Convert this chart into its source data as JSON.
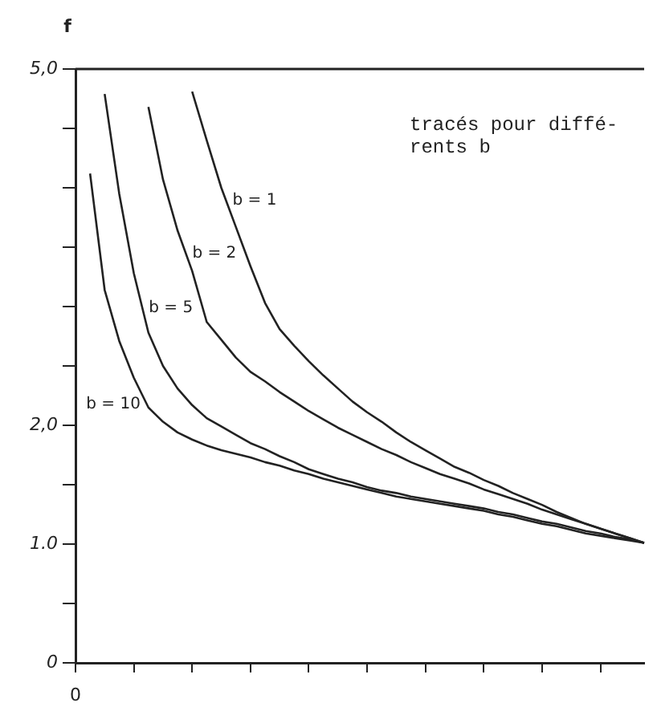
{
  "chart_data": {
    "type": "line",
    "ylabel": "f",
    "annotations": [
      "tracés pour diffé-\nrents b"
    ],
    "categories": [
      "0",
      null,
      null,
      null,
      null,
      null,
      null,
      null,
      null,
      null,
      null,
      null,
      null,
      null,
      null,
      null,
      null,
      null,
      null,
      null,
      null,
      null,
      null,
      null,
      null,
      null,
      null,
      null,
      null,
      null,
      null,
      null,
      null,
      null,
      null,
      null,
      null,
      null,
      null,
      null
    ],
    "ylim": [
      0,
      5
    ],
    "yticks": [
      0,
      {
        "value": 0.5,
        "label": null
      },
      {
        "value": 1,
        "label": "1.0"
      },
      {
        "value": 1.5,
        "label": null
      },
      {
        "value": 2,
        "label": "2,0"
      },
      {
        "value": 2.5,
        "label": null
      },
      {
        "value": 3,
        "label": null
      },
      {
        "value": 3.5,
        "label": null
      },
      {
        "value": 4,
        "label": null
      },
      {
        "value": 4.5,
        "label": null
      },
      {
        "value": 5,
        "label": "5,0"
      }
    ],
    "grid": false,
    "legend": false,
    "marker": "none",
    "line_style": "solid",
    "series": [
      {
        "name": "b = 1",
        "color": "#222222",
        "values": [
          null,
          null,
          null,
          null,
          null,
          null,
          null,
          null,
          4.81,
          4.4,
          4.0,
          3.67,
          3.34,
          3.03,
          2.81,
          2.67,
          2.54,
          2.42,
          2.31,
          2.2,
          2.11,
          2.03,
          1.94,
          1.86,
          1.79,
          1.72,
          1.65,
          1.6,
          1.54,
          1.49,
          1.43,
          1.38,
          1.33,
          1.27,
          1.22,
          1.17,
          1.13,
          1.09,
          1.05,
          1.01
        ]
      },
      {
        "name": "b = 2",
        "color": "#222222",
        "values": [
          null,
          null,
          null,
          null,
          null,
          4.68,
          4.07,
          3.64,
          3.3,
          2.87,
          2.72,
          2.57,
          2.45,
          2.37,
          2.28,
          2.2,
          2.12,
          2.05,
          1.98,
          1.92,
          1.86,
          1.8,
          1.75,
          1.69,
          1.64,
          1.59,
          1.55,
          1.51,
          1.46,
          1.42,
          1.38,
          1.34,
          1.29,
          1.25,
          1.21,
          1.17,
          1.13,
          1.09,
          1.05,
          1.01
        ]
      },
      {
        "name": "b = 5",
        "color": "#222222",
        "values": [
          null,
          null,
          4.79,
          3.95,
          3.28,
          2.78,
          2.5,
          2.31,
          2.17,
          2.06,
          1.99,
          1.92,
          1.85,
          1.8,
          1.74,
          1.69,
          1.63,
          1.59,
          1.55,
          1.52,
          1.48,
          1.45,
          1.43,
          1.4,
          1.38,
          1.36,
          1.34,
          1.32,
          1.3,
          1.27,
          1.25,
          1.22,
          1.19,
          1.17,
          1.14,
          1.11,
          1.09,
          1.06,
          1.04,
          1.01
        ]
      },
      {
        "name": "b = 10",
        "color": "#222222",
        "values": [
          null,
          4.12,
          3.14,
          2.71,
          2.4,
          2.15,
          2.03,
          1.94,
          1.88,
          1.83,
          1.79,
          1.76,
          1.73,
          1.69,
          1.66,
          1.62,
          1.59,
          1.55,
          1.52,
          1.49,
          1.46,
          1.43,
          1.4,
          1.38,
          1.36,
          1.34,
          1.32,
          1.3,
          1.28,
          1.25,
          1.23,
          1.2,
          1.17,
          1.15,
          1.12,
          1.09,
          1.07,
          1.05,
          1.03,
          1.01
        ]
      }
    ]
  }
}
